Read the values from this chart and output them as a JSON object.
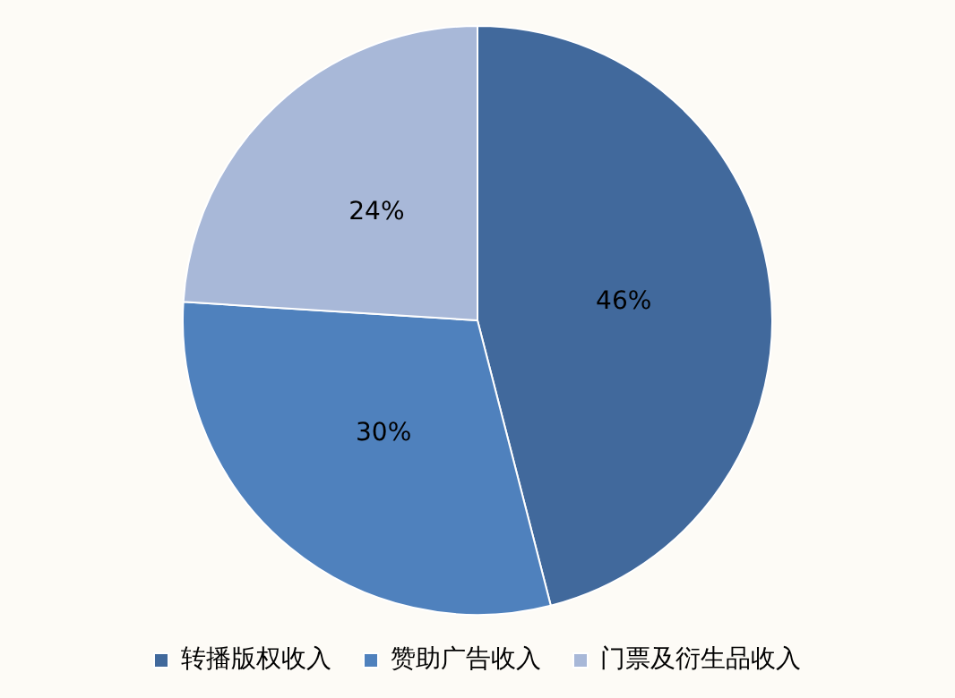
{
  "chart_data": {
    "type": "pie",
    "categories": [
      "转播版权收入",
      "赞助广告收入",
      "门票及衍生品收入"
    ],
    "values": [
      46,
      30,
      24
    ],
    "colors": [
      "#41699c",
      "#4f81bd",
      "#a8b8d8"
    ],
    "value_labels": [
      "46%",
      "30%",
      "24%"
    ],
    "legend": "bottom"
  }
}
